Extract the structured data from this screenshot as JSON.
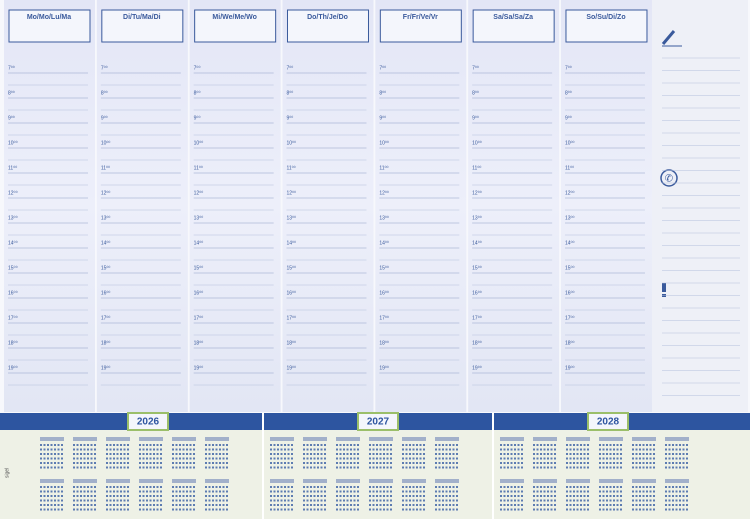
{
  "days": [
    "Mo/Mo/Lu/Ma",
    "Di/Tu/Ma/Di",
    "Mi/We/Me/Wo",
    "Do/Th/Je/Do",
    "Fr/Fr/Ve/Vr",
    "Sa/Sa/Sa/Za",
    "So/Su/Di/Zo"
  ],
  "hours": [
    "7⁰⁰",
    "8⁰⁰",
    "9⁰⁰",
    "10⁰⁰",
    "11⁰⁰",
    "12⁰⁰",
    "13⁰⁰",
    "14⁰⁰",
    "15⁰⁰",
    "16⁰⁰",
    "17⁰⁰",
    "18⁰⁰",
    "19⁰⁰"
  ],
  "years": [
    "2026",
    "2027",
    "2028"
  ],
  "brand": "sigel"
}
